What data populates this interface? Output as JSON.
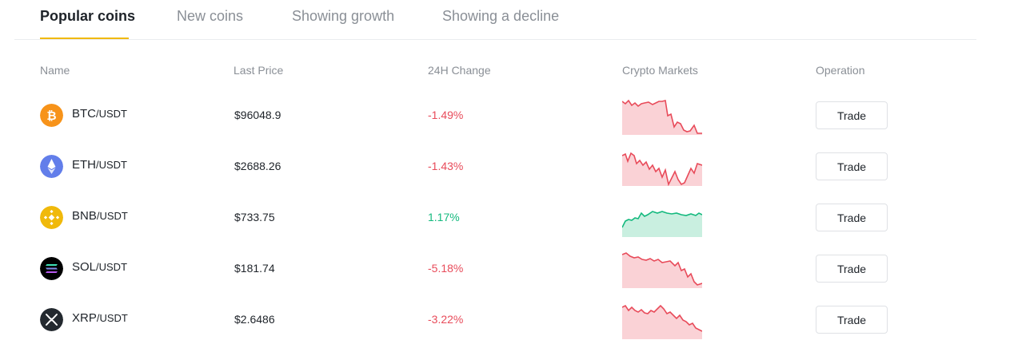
{
  "tabs": [
    {
      "label": "Popular coins",
      "active": true
    },
    {
      "label": "New coins",
      "active": false
    },
    {
      "label": "Showing growth",
      "active": false
    },
    {
      "label": "Showing a decline",
      "active": false
    }
  ],
  "columns": {
    "name": "Name",
    "last_price": "Last Price",
    "change_24h": "24H Change",
    "crypto_markets": "Crypto Markets",
    "operation": "Operation"
  },
  "colors": {
    "accent": "#f0b90b",
    "down": "#e84b5a",
    "up": "#14b97e"
  },
  "coins": [
    {
      "base": "BTC",
      "quote": "/USDT",
      "price": "$96048.9",
      "change": "-1.49%",
      "direction": "down",
      "icon": "bitcoin-icon",
      "trade_label": "Trade"
    },
    {
      "base": "ETH",
      "quote": "/USDT",
      "price": "$2688.26",
      "change": "-1.43%",
      "direction": "down",
      "icon": "ethereum-icon",
      "trade_label": "Trade"
    },
    {
      "base": "BNB",
      "quote": "/USDT",
      "price": "$733.75",
      "change": "1.17%",
      "direction": "up",
      "icon": "bnb-icon",
      "trade_label": "Trade"
    },
    {
      "base": "SOL",
      "quote": "/USDT",
      "price": "$181.74",
      "change": "-5.18%",
      "direction": "down",
      "icon": "solana-icon",
      "trade_label": "Trade"
    },
    {
      "base": "XRP",
      "quote": "/USDT",
      "price": "$2.6486",
      "change": "-3.22%",
      "direction": "down",
      "icon": "xrp-icon",
      "trade_label": "Trade"
    }
  ]
}
